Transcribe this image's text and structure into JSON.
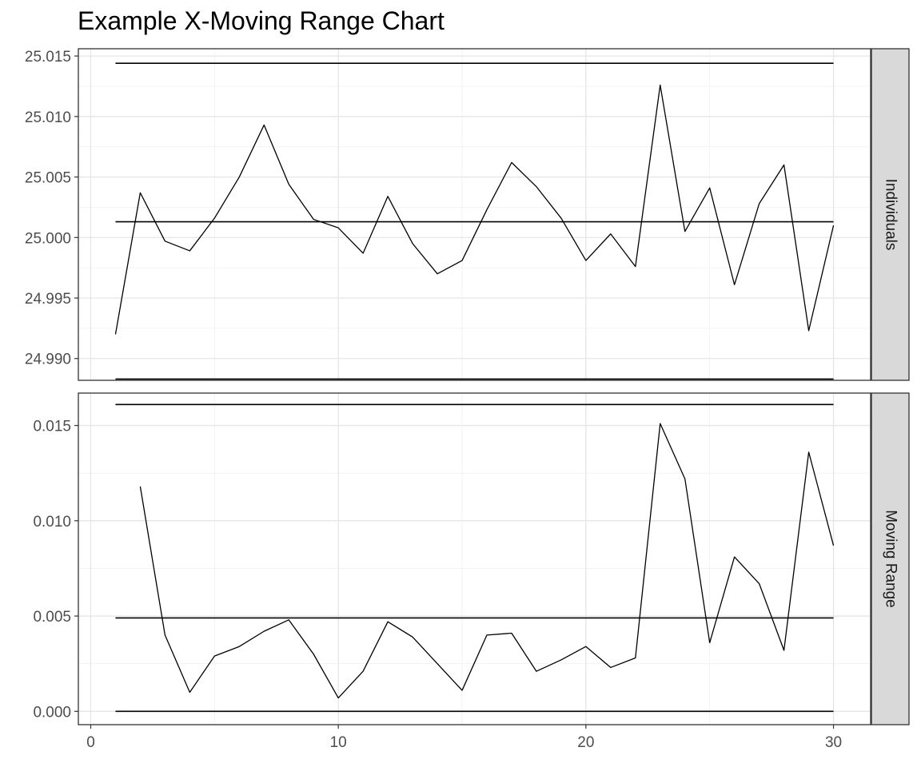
{
  "chart_data": {
    "type": "line",
    "title": "Example X-Moving Range Chart",
    "xlabel": "",
    "ylabel": "",
    "x_ticks": [
      0,
      10,
      20,
      30
    ],
    "xlim": [
      -0.5,
      31.5
    ],
    "grid": true,
    "panels": [
      {
        "strip_label": "Individuals",
        "ylim": [
          24.9882,
          25.0156
        ],
        "y_ticks": [
          24.99,
          24.995,
          25.0,
          25.005,
          25.01,
          25.015
        ],
        "y_tick_labels": [
          "24.990",
          "24.995",
          "25.000",
          "25.005",
          "25.010",
          "25.015"
        ],
        "center_line": 25.0013,
        "upper_limit": 25.0144,
        "lower_limit": 24.9883,
        "series": [
          {
            "x": [
              1,
              2,
              3,
              4,
              5,
              6,
              7,
              8,
              9,
              10,
              11,
              12,
              13,
              14,
              15,
              16,
              17,
              18,
              19,
              20,
              21,
              22,
              23,
              24,
              25,
              26,
              27,
              28,
              29,
              30
            ],
            "values": [
              24.992,
              25.0037,
              24.9997,
              24.9989,
              25.0016,
              25.005,
              25.0093,
              25.0044,
              25.0015,
              25.0008,
              24.9987,
              25.0034,
              24.9995,
              24.997,
              24.9981,
              25.0023,
              25.0062,
              25.0042,
              25.0016,
              24.9981,
              25.0003,
              24.9976,
              25.0126,
              25.0005,
              25.0041,
              24.9961,
              25.0028,
              25.006,
              24.9923,
              25.001
            ]
          }
        ]
      },
      {
        "strip_label": "Moving Range",
        "ylim": [
          -0.0007,
          0.0167
        ],
        "y_ticks": [
          0.0,
          0.005,
          0.01,
          0.015
        ],
        "y_tick_labels": [
          "0.000",
          "0.005",
          "0.010",
          "0.015"
        ],
        "center_line": 0.0049,
        "upper_limit": 0.0161,
        "lower_limit": 0.0,
        "series": [
          {
            "x": [
              2,
              3,
              4,
              5,
              6,
              7,
              8,
              9,
              10,
              11,
              12,
              13,
              14,
              15,
              16,
              17,
              18,
              19,
              20,
              21,
              22,
              23,
              24,
              25,
              26,
              27,
              28,
              29,
              30
            ],
            "values": [
              0.0118,
              0.004,
              0.001,
              0.0029,
              0.0034,
              0.0042,
              0.0048,
              0.003,
              0.0007,
              0.0021,
              0.0047,
              0.0039,
              0.0025,
              0.0011,
              0.004,
              0.0041,
              0.0021,
              0.0027,
              0.0034,
              0.0023,
              0.0028,
              0.0151,
              0.0122,
              0.0036,
              0.0081,
              0.0067,
              0.0032,
              0.0136,
              0.0087
            ]
          }
        ]
      }
    ]
  }
}
